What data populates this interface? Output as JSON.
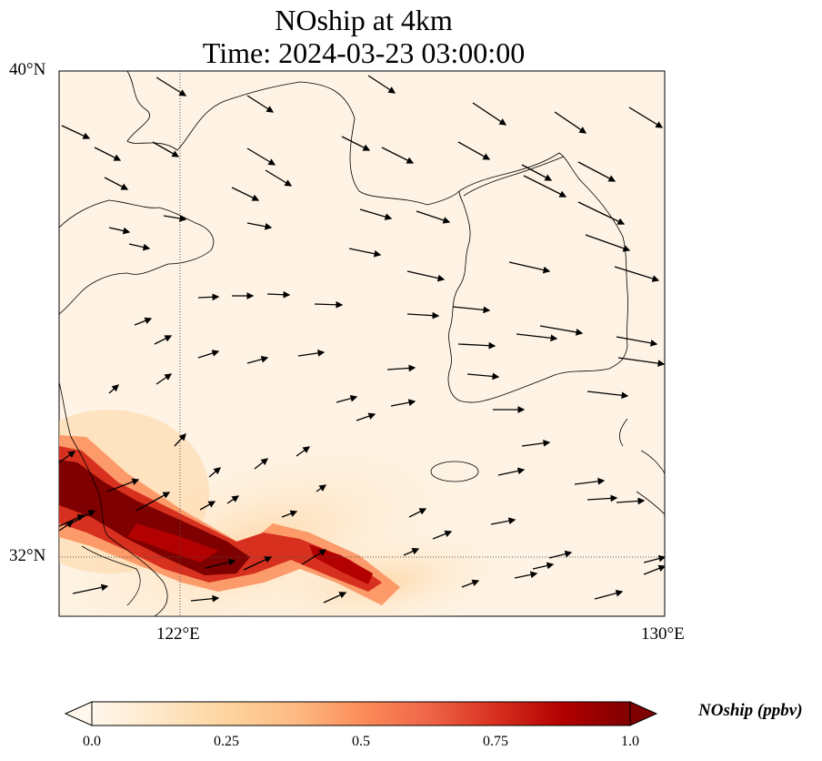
{
  "title": "NOship at 4km",
  "subtitle": "Time: 2024-03-23 03:00:00",
  "axes": {
    "lat_ticks": [
      "40°N",
      "32°N"
    ],
    "lon_ticks": [
      "122°E",
      "130°E"
    ]
  },
  "colorbar": {
    "label": "NOship (ppbv)",
    "ticks": [
      "0.0",
      "0.25",
      "0.5",
      "0.75",
      "1.0"
    ],
    "colors": [
      "#fff7ec",
      "#fee8c8",
      "#fdd49e",
      "#fdbb84",
      "#fc8d59",
      "#ef6548",
      "#d7301f",
      "#b30000",
      "#7f0000"
    ]
  },
  "chart_data": {
    "type": "heatmap",
    "title": "NOship at 4km",
    "subtitle": "Time: 2024-03-23 03:00:00",
    "field": "NOship (ppbv)",
    "vmin": 0.0,
    "vmax": 1.0,
    "lon_range": [
      120,
      130
    ],
    "lat_range": [
      31,
      40
    ],
    "plume": {
      "description_values": "high concentrations (~1.0 ppbv) along shipping lane off Shanghai toward southwest Korea",
      "segments": [
        {
          "lon": [
            120.0,
            124.0
          ],
          "lat": [
            33.2,
            31.6
          ],
          "value": 1.0
        },
        {
          "lon": [
            123.4,
            125.6
          ],
          "lat": [
            32.4,
            31.2
          ],
          "value": 0.85
        }
      ]
    },
    "wind_vectors": "present"
  }
}
